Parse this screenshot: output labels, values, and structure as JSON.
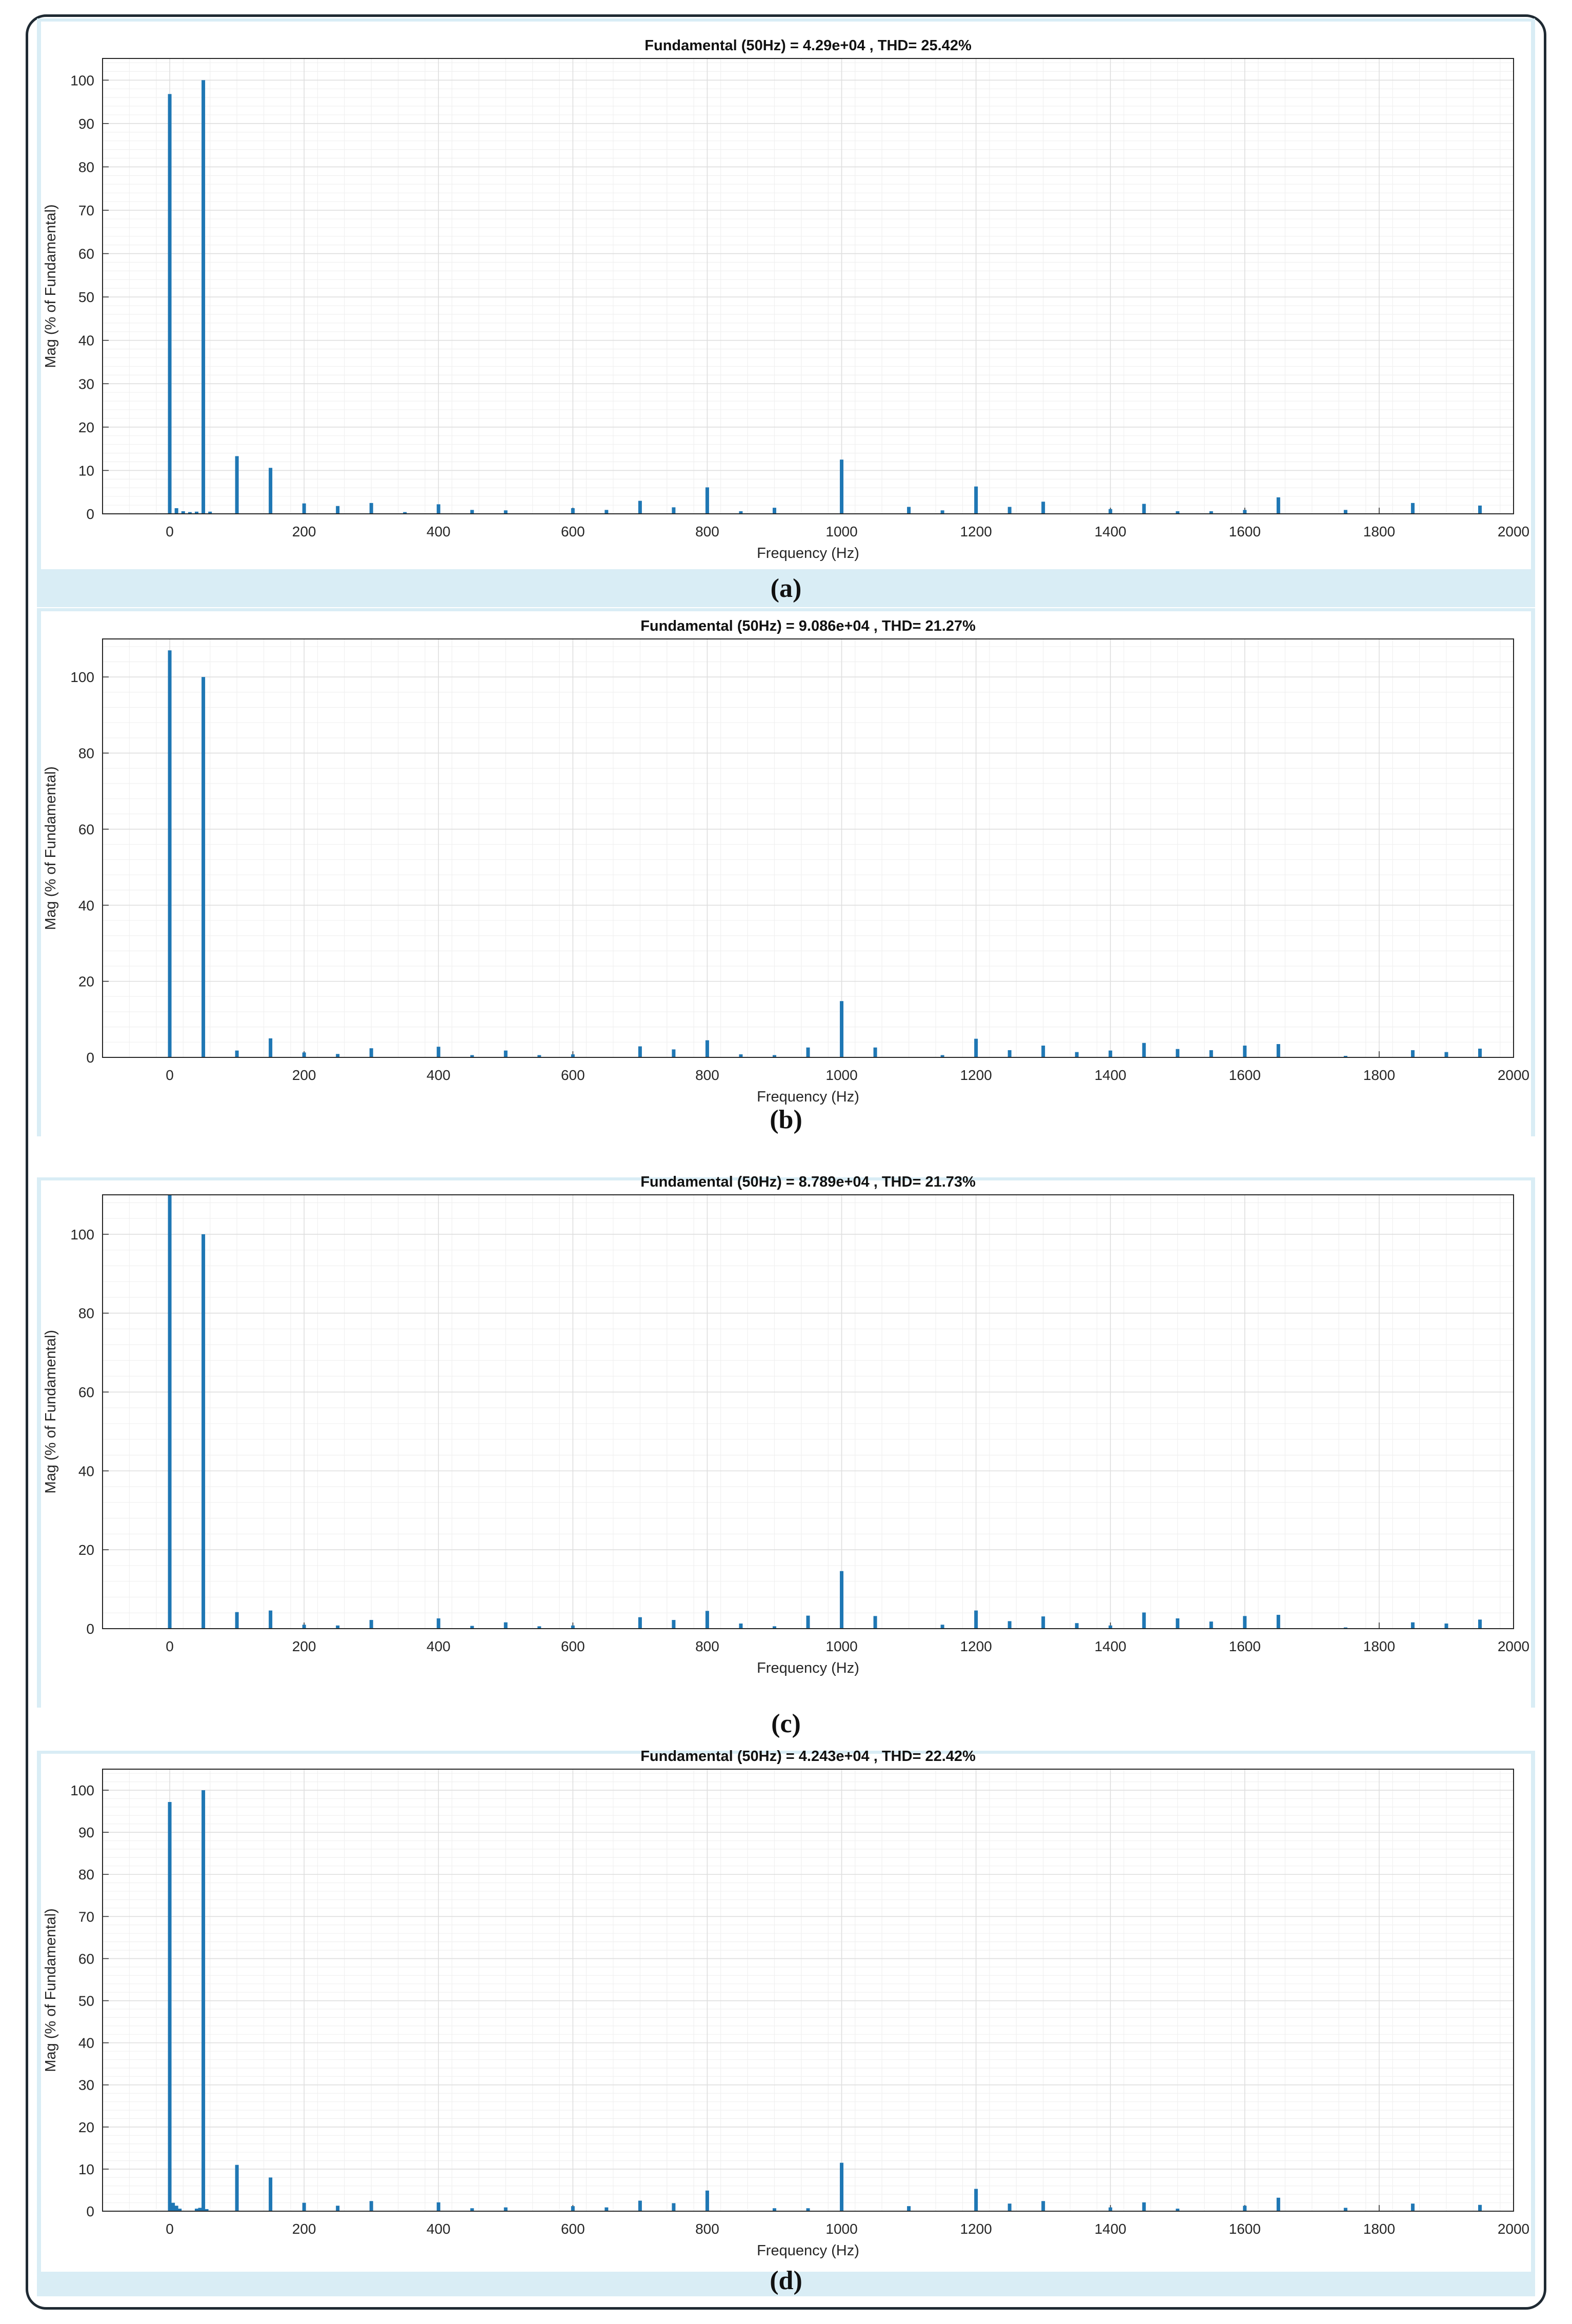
{
  "chart_data": [
    {
      "type": "bar",
      "title": "Fundamental (50Hz) = 4.29e+04 , THD= 25.42%",
      "xlabel": "Frequency (Hz)",
      "ylabel": "Mag (% of Fundamental)",
      "caption": "(a)",
      "xlim": [
        -100,
        2000
      ],
      "ylim": [
        0,
        105
      ],
      "xticks": [
        0,
        200,
        400,
        600,
        800,
        1000,
        1200,
        1400,
        1600,
        1800,
        2000
      ],
      "yticks": [
        0,
        10,
        20,
        30,
        40,
        50,
        60,
        70,
        80,
        90,
        100
      ],
      "grid": true,
      "color": "#1f77b4",
      "x": [
        0,
        10,
        20,
        30,
        40,
        50,
        60,
        100,
        150,
        200,
        250,
        300,
        350,
        400,
        450,
        500,
        600,
        650,
        700,
        750,
        800,
        850,
        900,
        1000,
        1100,
        1150,
        1200,
        1250,
        1300,
        1400,
        1450,
        1500,
        1550,
        1600,
        1650,
        1750,
        1850,
        1950
      ],
      "values": [
        96.8,
        1.3,
        0.6,
        0.4,
        0.5,
        100,
        0.5,
        13.3,
        10.6,
        2.4,
        1.8,
        2.5,
        0.4,
        2.2,
        0.9,
        0.8,
        1.3,
        0.9,
        3.0,
        1.5,
        6.1,
        0.6,
        1.4,
        12.5,
        1.6,
        0.8,
        6.3,
        1.6,
        2.8,
        1.1,
        2.3,
        0.6,
        0.6,
        0.9,
        3.8,
        0.9,
        2.5,
        1.9
      ]
    },
    {
      "type": "bar",
      "title": "Fundamental (50Hz) = 9.086e+04 , THD= 21.27%",
      "xlabel": "Frequency (Hz)",
      "ylabel": "Mag (% of Fundamental)",
      "caption": "(b)",
      "xlim": [
        -100,
        2000
      ],
      "ylim": [
        0,
        110
      ],
      "xticks": [
        0,
        200,
        400,
        600,
        800,
        1000,
        1200,
        1400,
        1600,
        1800,
        2000
      ],
      "yticks": [
        0,
        20,
        40,
        60,
        80,
        100
      ],
      "grid": true,
      "color": "#1f77b4",
      "x": [
        0,
        50,
        100,
        150,
        200,
        250,
        300,
        400,
        450,
        500,
        550,
        600,
        700,
        750,
        800,
        850,
        900,
        950,
        1000,
        1050,
        1150,
        1200,
        1250,
        1300,
        1350,
        1400,
        1450,
        1500,
        1550,
        1600,
        1650,
        1750,
        1850,
        1900,
        1950
      ],
      "values": [
        107,
        100,
        1.8,
        5.0,
        1.3,
        0.9,
        2.4,
        2.8,
        0.6,
        1.8,
        0.6,
        0.8,
        2.9,
        2.1,
        4.5,
        0.8,
        0.6,
        2.6,
        14.8,
        2.6,
        0.6,
        4.9,
        1.9,
        3.1,
        1.4,
        1.8,
        3.8,
        2.2,
        1.9,
        3.1,
        3.5,
        0.4,
        1.9,
        1.4,
        2.3
      ]
    },
    {
      "type": "bar",
      "title": "Fundamental (50Hz) = 8.789e+04 , THD= 21.73%",
      "xlabel": "Frequency (Hz)",
      "ylabel": "Mag (% of Fundamental)",
      "caption": "(c)",
      "xlim": [
        -100,
        2000
      ],
      "ylim": [
        0,
        110
      ],
      "xticks": [
        0,
        200,
        400,
        600,
        800,
        1000,
        1200,
        1400,
        1600,
        1800,
        2000
      ],
      "yticks": [
        0,
        20,
        40,
        60,
        80,
        100
      ],
      "grid": true,
      "color": "#1f77b4",
      "x": [
        0,
        50,
        100,
        150,
        200,
        250,
        300,
        400,
        450,
        500,
        550,
        600,
        700,
        750,
        800,
        850,
        900,
        950,
        1000,
        1050,
        1150,
        1200,
        1250,
        1300,
        1350,
        1400,
        1450,
        1500,
        1550,
        1600,
        1650,
        1750,
        1850,
        1900,
        1950
      ],
      "values": [
        110,
        100,
        4.2,
        4.6,
        1.0,
        0.8,
        2.2,
        2.6,
        0.7,
        1.6,
        0.6,
        0.8,
        2.9,
        2.2,
        4.5,
        1.3,
        0.6,
        3.3,
        14.6,
        3.2,
        1.0,
        4.6,
        1.9,
        3.1,
        1.4,
        0.8,
        4.1,
        2.6,
        1.8,
        3.2,
        3.5,
        0.3,
        1.6,
        1.3,
        2.3
      ]
    },
    {
      "type": "bar",
      "title": "Fundamental (50Hz) = 4.243e+04 , THD= 22.42%",
      "xlabel": "Frequency (Hz)",
      "ylabel": "Mag (% of Fundamental)",
      "caption": "(d)",
      "xlim": [
        -100,
        2000
      ],
      "ylim": [
        0,
        105
      ],
      "xticks": [
        0,
        200,
        400,
        600,
        800,
        1000,
        1200,
        1400,
        1600,
        1800,
        2000
      ],
      "yticks": [
        0,
        10,
        20,
        30,
        40,
        50,
        60,
        70,
        80,
        90,
        100
      ],
      "grid": true,
      "color": "#1f77b4",
      "x": [
        0,
        5,
        10,
        15,
        40,
        45,
        50,
        55,
        100,
        150,
        200,
        250,
        300,
        400,
        450,
        500,
        600,
        650,
        700,
        750,
        800,
        900,
        950,
        1000,
        1100,
        1200,
        1250,
        1300,
        1400,
        1450,
        1500,
        1600,
        1650,
        1750,
        1850,
        1950
      ],
      "values": [
        97.2,
        2.0,
        1.3,
        0.6,
        0.6,
        0.8,
        100,
        0.5,
        11.0,
        8.0,
        2.0,
        1.3,
        2.4,
        2.1,
        0.7,
        0.9,
        1.2,
        0.9,
        2.5,
        1.9,
        4.9,
        0.7,
        0.7,
        11.5,
        1.2,
        5.3,
        1.8,
        2.4,
        0.9,
        2.1,
        0.6,
        1.3,
        3.2,
        0.8,
        1.8,
        1.5
      ]
    }
  ]
}
